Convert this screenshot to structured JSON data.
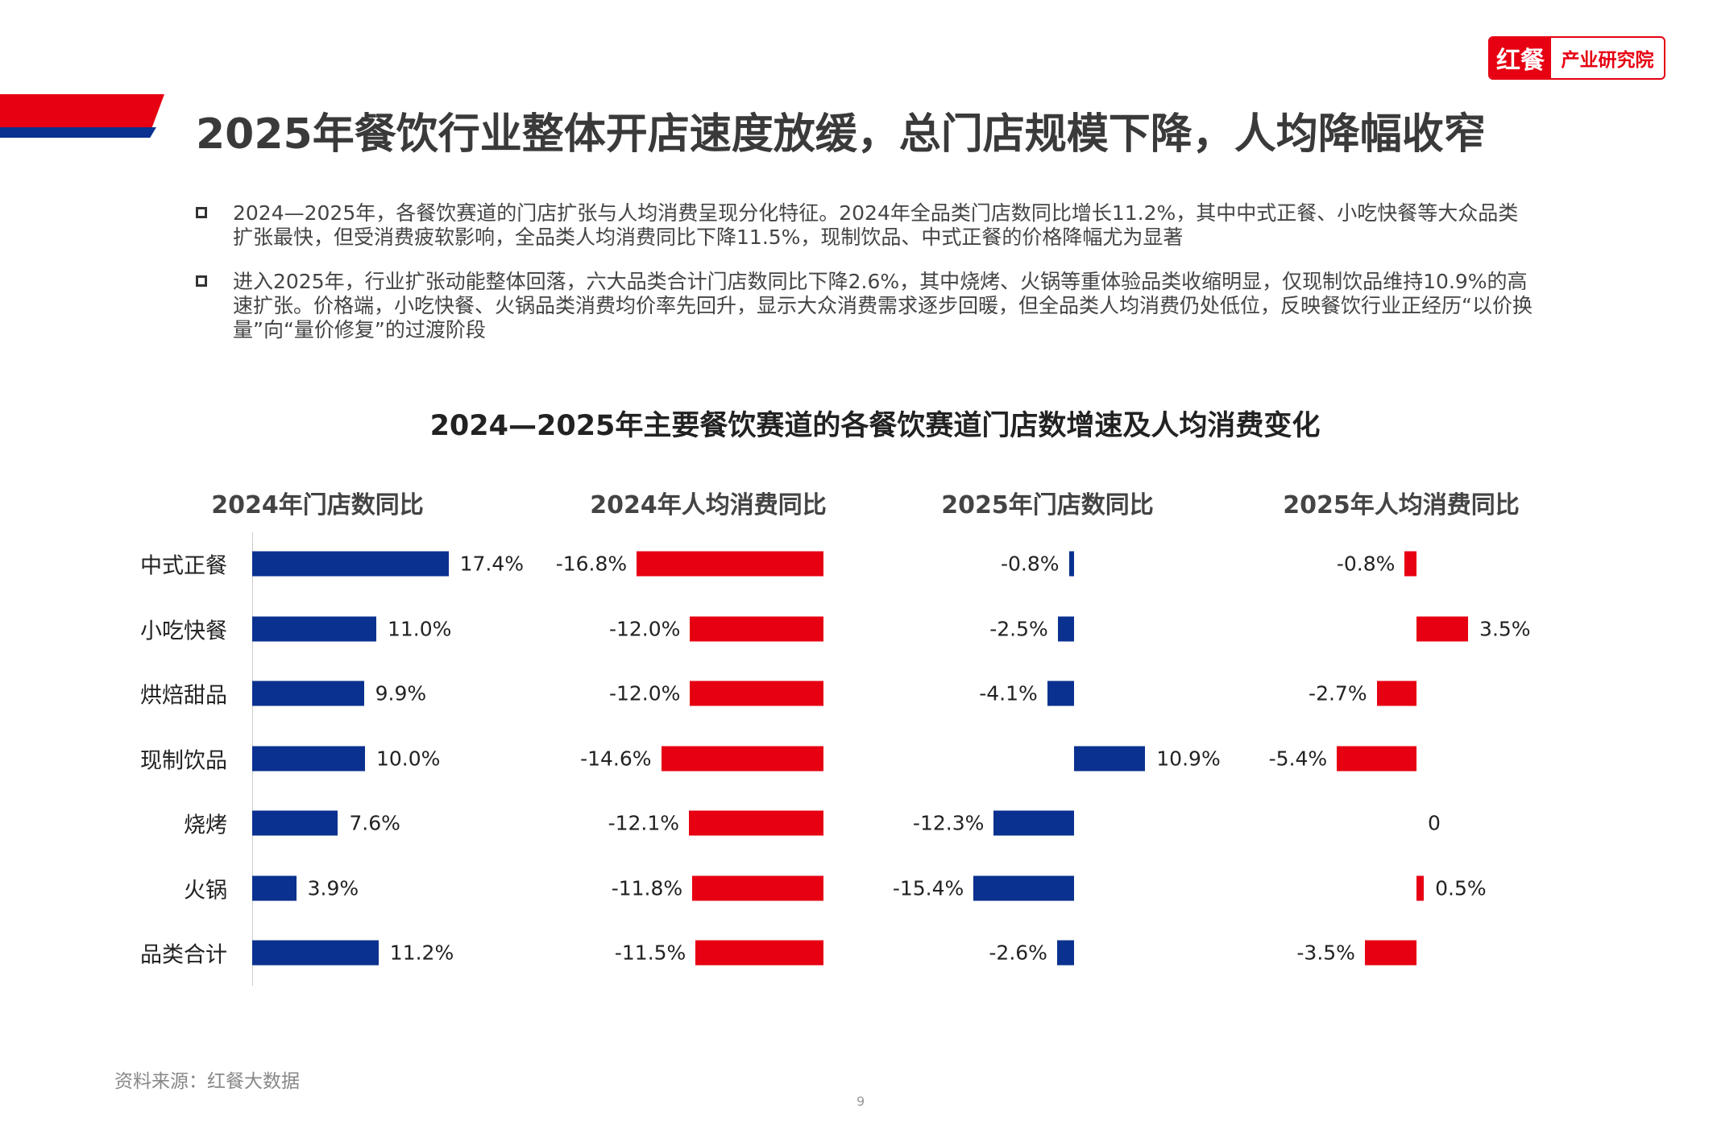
{
  "logo": {
    "part1": "红餐",
    "part2": "产业研究院"
  },
  "title": "2025年餐饮行业整体开店速度放缓，总门店规模下降，人均降幅收窄",
  "bullets": [
    "2024—2025年，各餐饮赛道的门店扩张与人均消费呈现分化特征。2024年全品类门店数同比增长11.2%，其中中式正餐、小吃快餐等大众品类扩张最快，但受消费疲软影响，全品类人均消费同比下降11.5%，现制饮品、中式正餐的价格降幅尤为显著",
    "进入2025年，行业扩张动能整体回落，六大品类合计门店数同比下降2.6%，其中烧烤、火锅等重体验品类收缩明显，仅现制饮品维持10.9%的高速扩张。价格端，小吃快餐、火锅品类消费均价率先回升，显示大众消费需求逐步回暖，但全品类人均消费仍处低位，反映餐饮行业正经历“以价换量”向“量价修复”的过渡阶段"
  ],
  "chart_data": {
    "type": "bar",
    "orientation": "horizontal",
    "title": "2024—2025年主要餐饮赛道的各餐饮赛道门店数增速及人均消费变化",
    "categories": [
      "中式正餐",
      "小吃快餐",
      "烘焙甜品",
      "现制饮品",
      "烧烤",
      "火锅",
      "品类合计"
    ],
    "colors": {
      "positive_store": "#0a318f",
      "consumption": "#e60012"
    },
    "series": [
      {
        "name": "2024年门店数同比",
        "values": [
          17.4,
          11.0,
          9.9,
          10.0,
          7.6,
          3.9,
          11.2
        ],
        "labels": [
          "17.4%",
          "11.0%",
          "9.9%",
          "10.0%",
          "7.6%",
          "3.9%",
          "11.2%"
        ],
        "color": "#0a318f"
      },
      {
        "name": "2024年人均消费同比",
        "values": [
          -16.8,
          -12.0,
          -12.0,
          -14.6,
          -12.1,
          -11.8,
          -11.5
        ],
        "labels": [
          "-16.8%",
          "-12.0%",
          "-12.0%",
          "-14.6%",
          "-12.1%",
          "-11.8%",
          "-11.5%"
        ],
        "color": "#e60012"
      },
      {
        "name": "2025年门店数同比",
        "values": [
          -0.8,
          -2.5,
          -4.1,
          10.9,
          -12.3,
          -15.4,
          -2.6
        ],
        "labels": [
          "-0.8%",
          "-2.5%",
          "-4.1%",
          "10.9%",
          "-12.3%",
          "-15.4%",
          "-2.6%"
        ],
        "color": "#0a318f"
      },
      {
        "name": "2025年人均消费同比",
        "values": [
          -0.8,
          3.5,
          -2.7,
          -5.4,
          0,
          0.5,
          -3.5
        ],
        "labels": [
          "-0.8%",
          "3.5%",
          "-2.7%",
          "-5.4%",
          "0",
          "0.5%",
          "-3.5%"
        ],
        "color": "#e60012"
      }
    ]
  },
  "source": "资料来源：红餐大数据",
  "page_number": "9"
}
